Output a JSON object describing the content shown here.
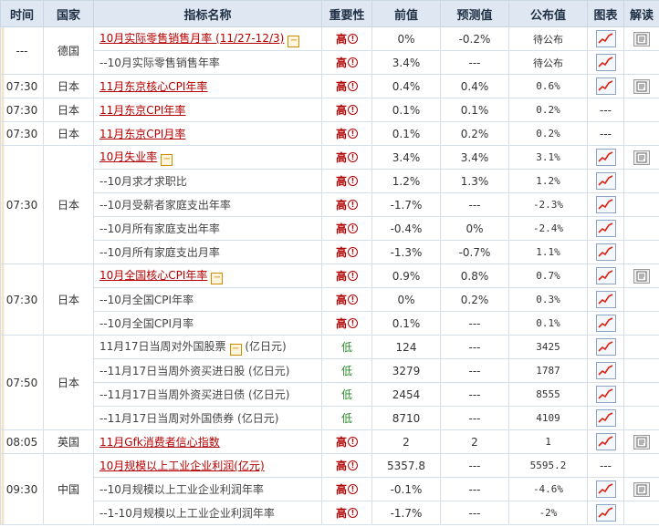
{
  "headers": [
    "时间",
    "国家",
    "指标名称",
    "重要性",
    "前值",
    "预测值",
    "公布值",
    "图表",
    "解读"
  ],
  "groups": [
    {
      "time": "---",
      "country": "德国",
      "rows": [
        {
          "name": "10月实际零售销售月率 (11/27-12/3)",
          "link": true,
          "collapse": true,
          "imp": "高",
          "prev": "0%",
          "fore": "-0.2%",
          "actual": "待公布",
          "chart": true,
          "read": true
        },
        {
          "name": "--10月实际零售销售年率",
          "link": false,
          "imp": "高",
          "prev": "3.4%",
          "fore": "---",
          "actual": "待公布",
          "chart": true,
          "read": false
        }
      ]
    },
    {
      "time": "07:30",
      "country": "日本",
      "rows": [
        {
          "name": "11月东京核心CPI年率",
          "link": true,
          "imp": "高",
          "prev": "0.4%",
          "fore": "0.4%",
          "actual": "0.6%",
          "chart": true,
          "read": true
        }
      ]
    },
    {
      "time": "07:30",
      "country": "日本",
      "rows": [
        {
          "name": "11月东京CPI年率",
          "link": true,
          "imp": "高",
          "prev": "0.1%",
          "fore": "0.1%",
          "actual": "0.2%",
          "chart": false,
          "read": false
        }
      ]
    },
    {
      "time": "07:30",
      "country": "日本",
      "rows": [
        {
          "name": "11月东京CPI月率",
          "link": true,
          "imp": "高",
          "prev": "0.1%",
          "fore": "0.2%",
          "actual": "0.2%",
          "chart": false,
          "read": false
        }
      ]
    },
    {
      "time": "07:30",
      "country": "日本",
      "rows": [
        {
          "name": "10月失业率",
          "link": true,
          "collapse": true,
          "imp": "高",
          "prev": "3.4%",
          "fore": "3.4%",
          "actual": "3.1%",
          "chart": true,
          "read": true
        },
        {
          "name": "--10月求才求职比",
          "link": false,
          "imp": "高",
          "prev": "1.2%",
          "fore": "1.3%",
          "actual": "1.2%",
          "chart": true,
          "read": false
        },
        {
          "name": "--10月受薪者家庭支出年率",
          "link": false,
          "imp": "高",
          "prev": "-1.7%",
          "fore": "---",
          "actual": "-2.3%",
          "chart": true,
          "read": false
        },
        {
          "name": "--10月所有家庭支出年率",
          "link": false,
          "imp": "高",
          "prev": "-0.4%",
          "fore": "0%",
          "actual": "-2.4%",
          "chart": true,
          "read": false
        },
        {
          "name": "--10月所有家庭支出月率",
          "link": false,
          "imp": "高",
          "prev": "-1.3%",
          "fore": "-0.7%",
          "actual": "1.1%",
          "chart": true,
          "read": false
        }
      ]
    },
    {
      "time": "07:30",
      "country": "日本",
      "rows": [
        {
          "name": "10月全国核心CPI年率",
          "link": true,
          "collapse": true,
          "imp": "高",
          "prev": "0.9%",
          "fore": "0.8%",
          "actual": "0.7%",
          "chart": true,
          "read": true
        },
        {
          "name": "--10月全国CPI年率",
          "link": false,
          "imp": "高",
          "prev": "0%",
          "fore": "0.2%",
          "actual": "0.3%",
          "chart": true,
          "read": false
        },
        {
          "name": "--10月全国CPI月率",
          "link": false,
          "imp": "高",
          "prev": "0.1%",
          "fore": "---",
          "actual": "0.1%",
          "chart": true,
          "read": false
        }
      ]
    },
    {
      "time": "07:50",
      "country": "日本",
      "rows": [
        {
          "name": "11月17日当周对外国股票",
          "link": false,
          "collapse": true,
          "suffix": "(亿日元)",
          "imp": "低",
          "prev": "124",
          "fore": "---",
          "actual": "3425",
          "chart": true,
          "read": false
        },
        {
          "name": "--11月17日当周外资买进日股 (亿日元)",
          "link": false,
          "imp": "低",
          "prev": "3279",
          "fore": "---",
          "actual": "1787",
          "chart": true,
          "read": false
        },
        {
          "name": "--11月17日当周外资买进日债 (亿日元)",
          "link": false,
          "imp": "低",
          "prev": "2454",
          "fore": "---",
          "actual": "8555",
          "chart": true,
          "read": false
        },
        {
          "name": "--11月17日当周对外国债券 (亿日元)",
          "link": false,
          "imp": "低",
          "prev": "8710",
          "fore": "---",
          "actual": "4109",
          "chart": true,
          "read": false
        }
      ]
    },
    {
      "time": "08:05",
      "country": "英国",
      "rows": [
        {
          "name": "11月Gfk消费者信心指数",
          "link": true,
          "imp": "高",
          "prev": "2",
          "fore": "2",
          "actual": "1",
          "chart": true,
          "read": true
        }
      ]
    },
    {
      "time": "09:30",
      "country": "中国",
      "rows": [
        {
          "name": "10月规模以上工业企业利润(亿元)",
          "link": true,
          "imp": "高",
          "prev": "5357.8",
          "fore": "---",
          "actual": "5595.2",
          "chart": false,
          "read": false
        },
        {
          "name": "--10月规模以上工业企业利润年率",
          "link": false,
          "imp": "高",
          "prev": "-0.1%",
          "fore": "---",
          "actual": "-4.6%",
          "chart": true,
          "read": true
        },
        {
          "name": "--1-10月规模以上工业企业利润年率",
          "link": false,
          "imp": "高",
          "prev": "-1.7%",
          "fore": "---",
          "actual": "-2%",
          "chart": true,
          "read": false
        }
      ]
    }
  ],
  "empty_cell": "---",
  "icons": {
    "chart": "line-chart-icon",
    "read": "document-icon",
    "bang": "exclamation-icon",
    "collapse": "minus-box-icon"
  }
}
